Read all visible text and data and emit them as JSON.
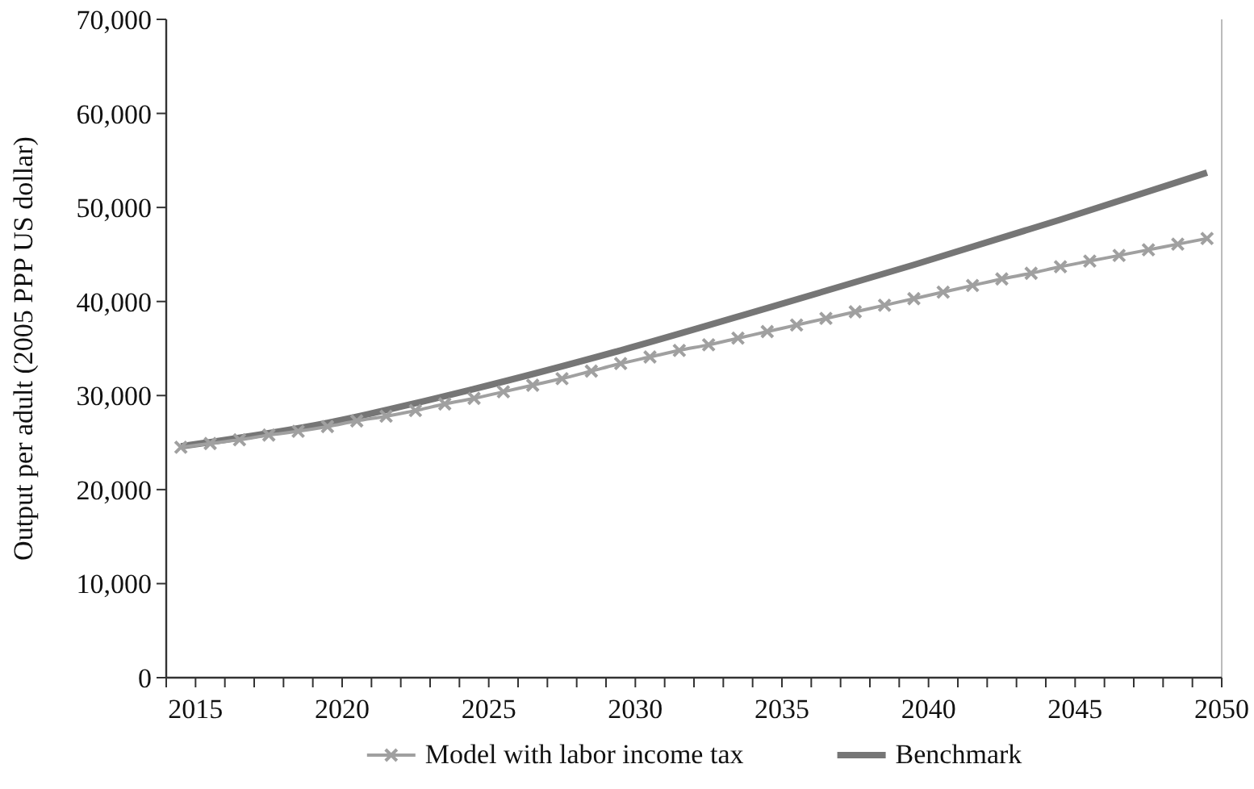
{
  "chart_data": {
    "type": "line",
    "ylabel": "Output per adult (2005 PPP US dollar)",
    "xlim": [
      2014,
      2050
    ],
    "ylim": [
      0,
      70000
    ],
    "xticks": [
      {
        "value": 2014,
        "label": null
      },
      {
        "value": 2015,
        "label": "2015"
      },
      {
        "value": 2016,
        "label": null
      },
      {
        "value": 2017,
        "label": null
      },
      {
        "value": 2018,
        "label": null
      },
      {
        "value": 2019,
        "label": null
      },
      {
        "value": 2020,
        "label": "2020"
      },
      {
        "value": 2021,
        "label": null
      },
      {
        "value": 2022,
        "label": null
      },
      {
        "value": 2023,
        "label": null
      },
      {
        "value": 2024,
        "label": null
      },
      {
        "value": 2025,
        "label": "2025"
      },
      {
        "value": 2026,
        "label": null
      },
      {
        "value": 2027,
        "label": null
      },
      {
        "value": 2028,
        "label": null
      },
      {
        "value": 2029,
        "label": null
      },
      {
        "value": 2030,
        "label": "2030"
      },
      {
        "value": 2031,
        "label": null
      },
      {
        "value": 2032,
        "label": null
      },
      {
        "value": 2033,
        "label": null
      },
      {
        "value": 2034,
        "label": null
      },
      {
        "value": 2035,
        "label": "2035"
      },
      {
        "value": 2036,
        "label": null
      },
      {
        "value": 2037,
        "label": null
      },
      {
        "value": 2038,
        "label": null
      },
      {
        "value": 2039,
        "label": null
      },
      {
        "value": 2040,
        "label": "2040"
      },
      {
        "value": 2041,
        "label": null
      },
      {
        "value": 2042,
        "label": null
      },
      {
        "value": 2043,
        "label": null
      },
      {
        "value": 2044,
        "label": null
      },
      {
        "value": 2045,
        "label": "2045"
      },
      {
        "value": 2046,
        "label": null
      },
      {
        "value": 2047,
        "label": null
      },
      {
        "value": 2048,
        "label": null
      },
      {
        "value": 2049,
        "label": null
      },
      {
        "value": 2050,
        "label": "2050"
      }
    ],
    "yticks": [
      0,
      {
        "value": 10000,
        "label": "10,000"
      },
      {
        "value": 20000,
        "label": "20,000"
      },
      {
        "value": 30000,
        "label": "30,000"
      },
      {
        "value": 40000,
        "label": "40,000"
      },
      {
        "value": 50000,
        "label": "50,000"
      },
      {
        "value": 60000,
        "label": "60,000"
      },
      {
        "value": 70000,
        "label": "70,000"
      }
    ],
    "legend": "bottom",
    "grid": false,
    "series": [
      {
        "name": "Model with labor income tax",
        "color": "#a0a0a0",
        "marker": "cross",
        "x": [
          2014.5,
          2015.5,
          2016.5,
          2017.5,
          2018.5,
          2019.5,
          2020.5,
          2021.5,
          2022.5,
          2023.5,
          2024.5,
          2025.5,
          2026.5,
          2027.5,
          2028.5,
          2029.5,
          2030.5,
          2031.5,
          2032.5,
          2033.5,
          2034.5,
          2035.5,
          2036.5,
          2037.5,
          2038.5,
          2039.5,
          2040.5,
          2041.5,
          2042.5,
          2043.5,
          2044.5,
          2045.5,
          2046.5,
          2047.5,
          2048.5,
          2049.5
        ],
        "values": [
          24500,
          24900,
          25300,
          25800,
          26200,
          26700,
          27300,
          27800,
          28400,
          29100,
          29700,
          30400,
          31100,
          31800,
          32600,
          33400,
          34100,
          34800,
          35400,
          36100,
          36800,
          37500,
          38200,
          38900,
          39600,
          40300,
          41000,
          41700,
          42400,
          43000,
          43700,
          44300,
          44900,
          45500,
          46100,
          46700
        ]
      },
      {
        "name": "Benchmark",
        "color": "#767676",
        "marker": "none",
        "x": [
          2014.5,
          2019.5,
          2024.5,
          2029.5,
          2034.5,
          2039.5,
          2044.5,
          2049.5
        ],
        "values": [
          24600,
          27100,
          30700,
          34800,
          39300,
          43900,
          48700,
          53700
        ]
      }
    ]
  }
}
